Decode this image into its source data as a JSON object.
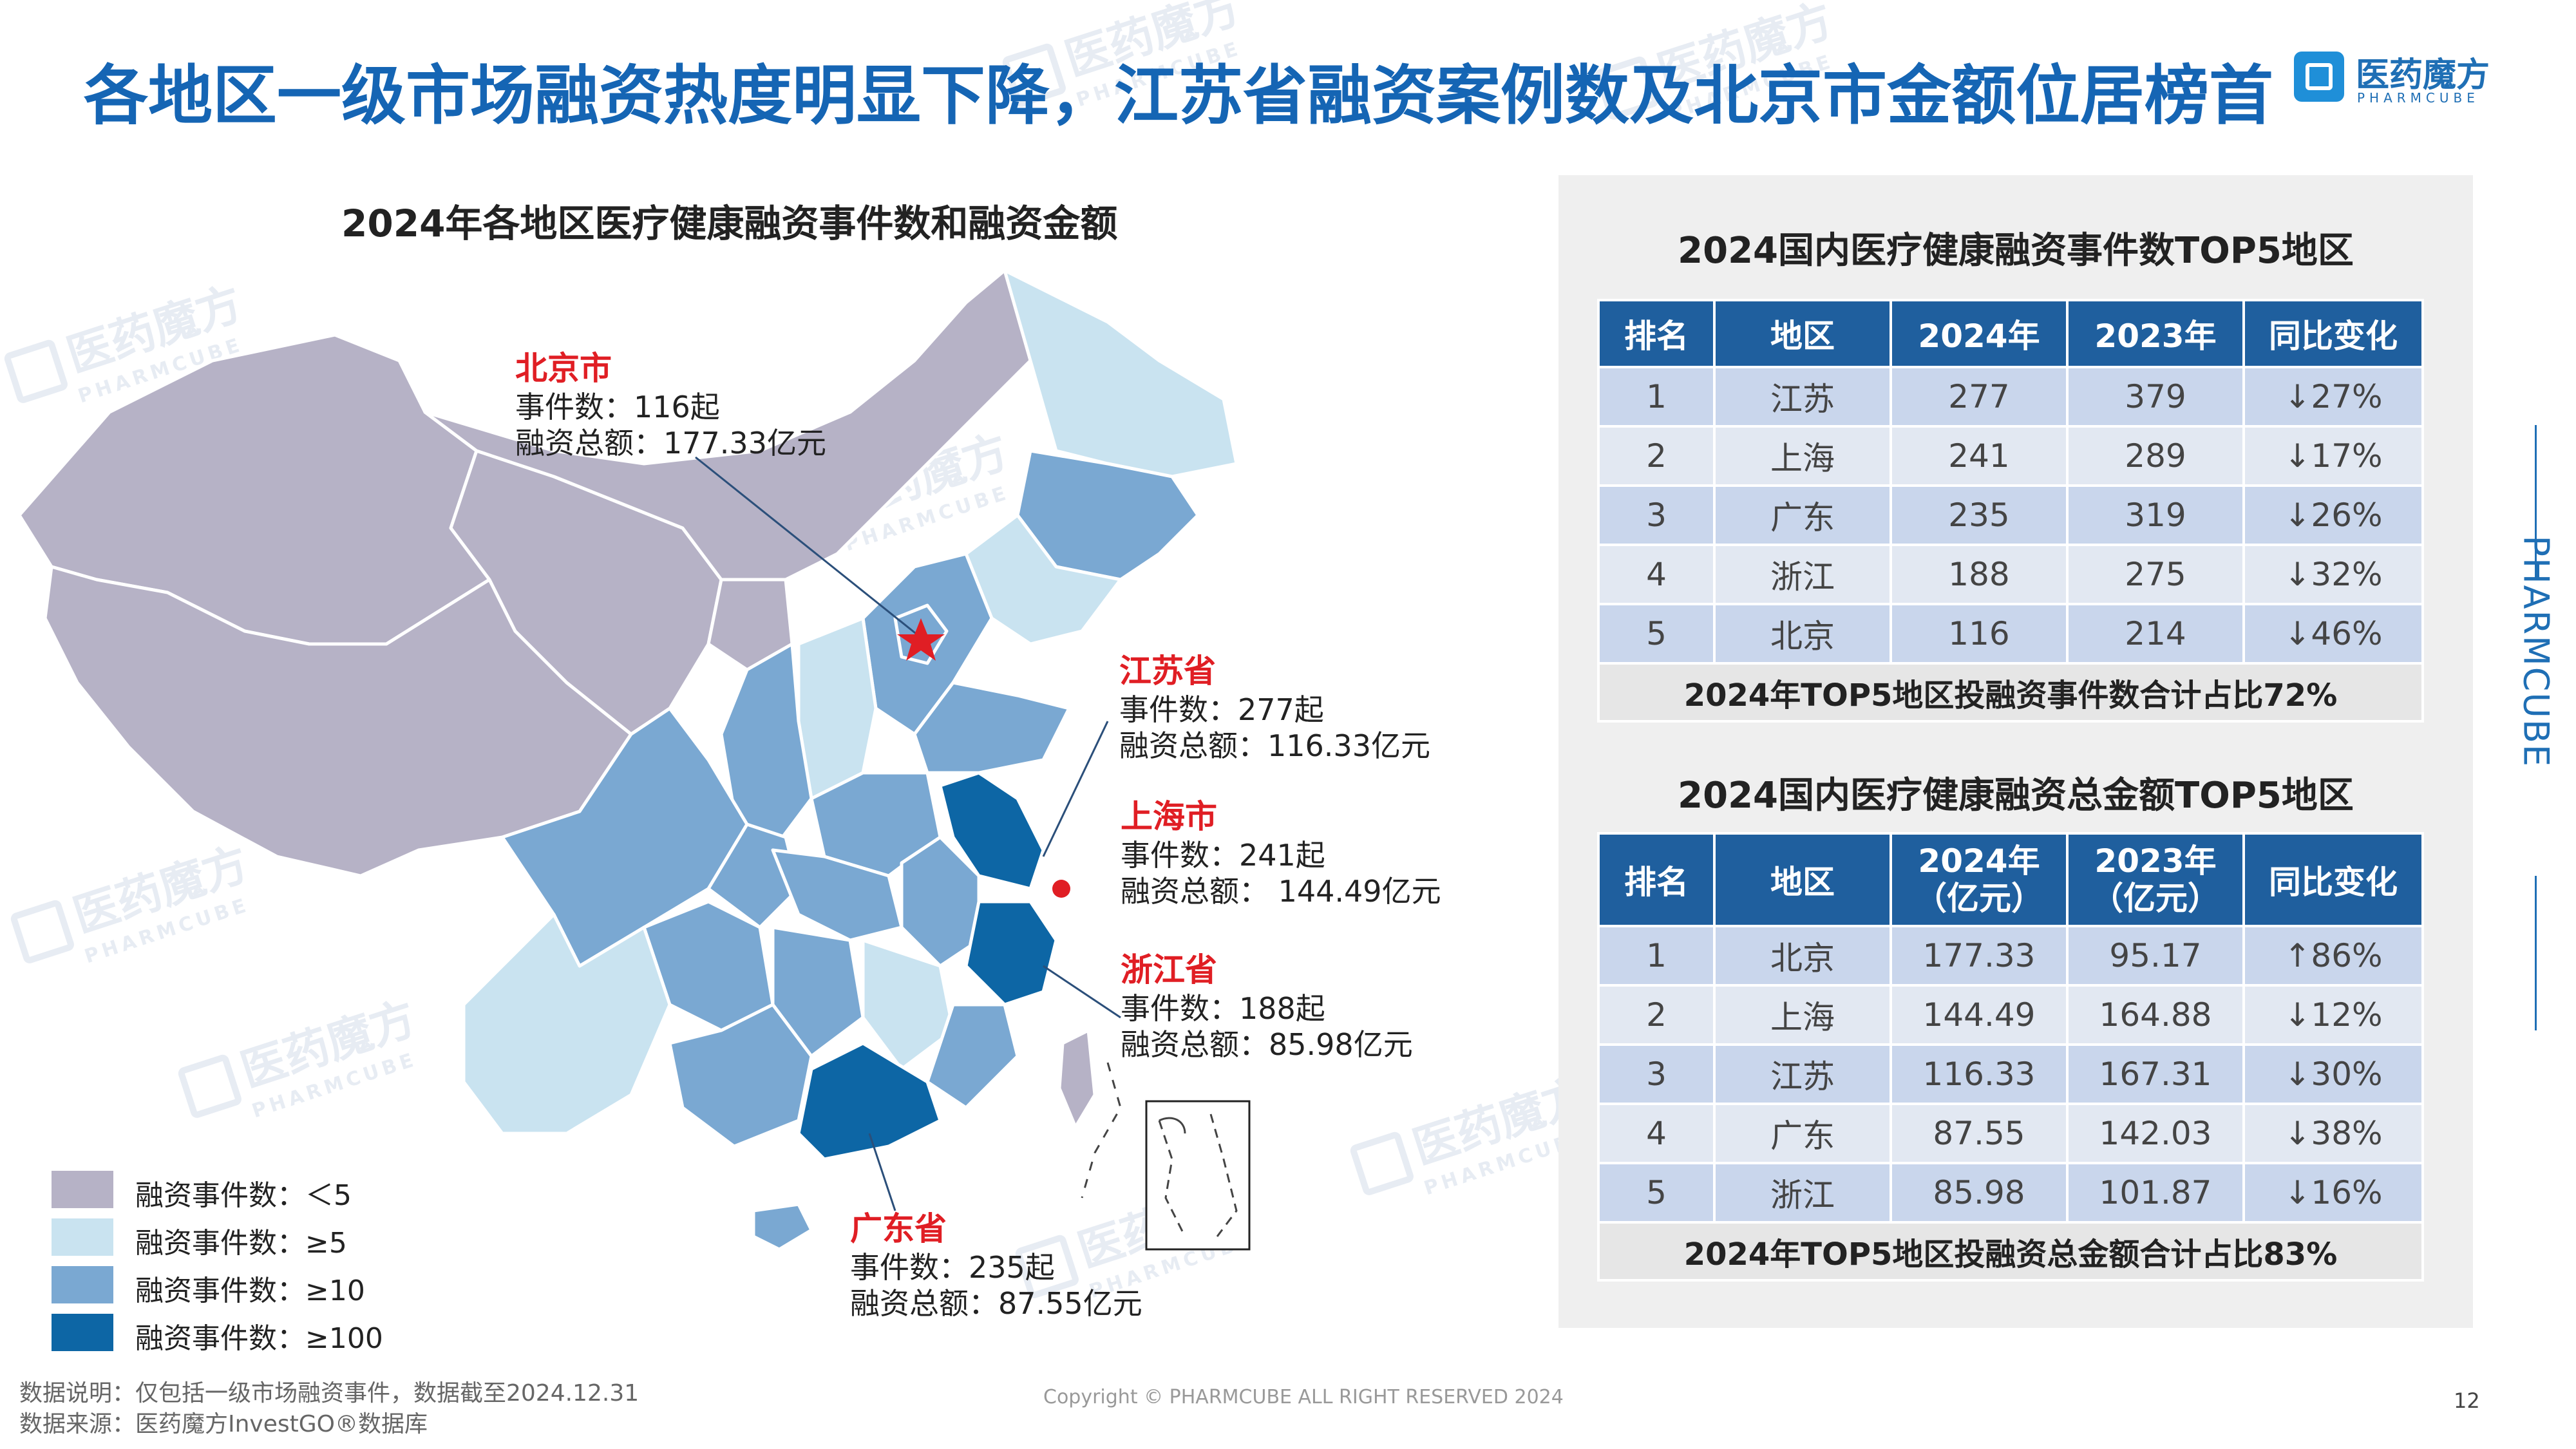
{
  "page": {
    "title": "各地区一级市场融资热度明显下降，江苏省融资案例数及北京市金额位居榜首",
    "page_number": "12",
    "copyright": "Copyright © PHARMCUBE ALL RIGHT RESERVED 2024",
    "footnote": {
      "line1": "数据说明：仅包括一级市场融资事件，数据截至2024.12.31",
      "line2": "数据来源：医药魔方InvestGO®数据库"
    }
  },
  "brand": {
    "name": "医药魔方",
    "english": "PHARMCUBE",
    "side_label": "PHARMCUBE",
    "color": "#1f6fb5"
  },
  "map": {
    "title": "2024年各地区医疗健康融资事件数和融资金额",
    "colors": {
      "lt5": "#b6b2c6",
      "ge5": "#c9e3f0",
      "ge10": "#7aa8d2",
      "ge100": "#0d66a5"
    },
    "legend": [
      {
        "label": "融资事件数：＜5",
        "color": "#b6b2c6"
      },
      {
        "label": "融资事件数：≥5",
        "color": "#c9e3f0"
      },
      {
        "label": "融资事件数：≥10",
        "color": "#7aa8d2"
      },
      {
        "label": "融资事件数：≥100",
        "color": "#0d66a5"
      }
    ],
    "callouts": {
      "beijing": {
        "name": "北京市",
        "events": "事件数：116起",
        "amount": "融资总额：177.33亿元"
      },
      "jiangsu": {
        "name": "江苏省",
        "events": "事件数：277起",
        "amount": "融资总额：116.33亿元"
      },
      "shanghai": {
        "name": "上海市",
        "events": "事件数：241起",
        "amount": "融资总额：  144.49亿元"
      },
      "zhejiang": {
        "name": "浙江省",
        "events": "事件数：188起",
        "amount": "融资总额：85.98亿元"
      },
      "guangdong": {
        "name": "广东省",
        "events": "事件数：235起",
        "amount": "融资总额：87.55亿元"
      }
    }
  },
  "table_events": {
    "title": "2024国内医疗健康融资事件数TOP5地区",
    "headers": [
      "排名",
      "地区",
      "2024年",
      "2023年",
      "同比变化"
    ],
    "rows": [
      [
        "1",
        "江苏",
        "277",
        "379",
        "↓27%"
      ],
      [
        "2",
        "上海",
        "241",
        "289",
        "↓17%"
      ],
      [
        "3",
        "广东",
        "235",
        "319",
        "↓26%"
      ],
      [
        "4",
        "浙江",
        "188",
        "275",
        "↓32%"
      ],
      [
        "5",
        "北京",
        "116",
        "214",
        "↓46%"
      ]
    ],
    "summary": "2024年TOP5地区投融资事件数合计占比72%"
  },
  "table_amount": {
    "title": "2024国内医疗健康融资总金额TOP5地区",
    "headers": [
      "排名",
      "地区",
      "2024年\n（亿元）",
      "2023年\n（亿元）",
      "同比变化"
    ],
    "rows": [
      [
        "1",
        "北京",
        "177.33",
        "95.17",
        "↑86%"
      ],
      [
        "2",
        "上海",
        "144.49",
        "164.88",
        "↓12%"
      ],
      [
        "3",
        "江苏",
        "116.33",
        "167.31",
        "↓30%"
      ],
      [
        "4",
        "广东",
        "87.55",
        "142.03",
        "↓38%"
      ],
      [
        "5",
        "浙江",
        "85.98",
        "101.87",
        "↓16%"
      ]
    ],
    "summary": "2024年TOP5地区投融资总金额合计占比83%"
  }
}
